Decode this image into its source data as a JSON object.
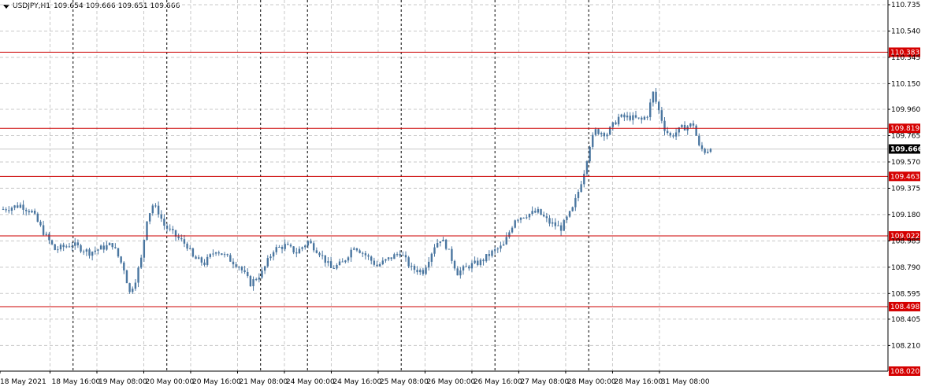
{
  "header": {
    "symbol_timeframe": "USDJPY,H1",
    "ohlc": "109.654 109.666 109.651 109.666"
  },
  "colors": {
    "candle": "#4a76a0",
    "level_line": "#cc0000",
    "level_label_bg": "#d50000",
    "current_price_line": "#c8c8c8",
    "grid": "#c8c8c8",
    "separator": "#000000"
  },
  "chart_data": {
    "type": "candlestick",
    "symbol": "USDJPY",
    "timeframe": "H1",
    "ylim": [
      108.02,
      110.77
    ],
    "y_ticks": [
      "110.735",
      "110.540",
      "110.345",
      "110.150",
      "109.960",
      "109.765",
      "109.570",
      "109.375",
      "109.180",
      "108.985",
      "108.790",
      "108.595",
      "108.405",
      "108.210"
    ],
    "x_ticks": [
      "18 May 2021",
      "18 May 16:00",
      "19 May 08:00",
      "20 May 00:00",
      "20 May 16:00",
      "21 May 08:00",
      "24 May 00:00",
      "24 May 16:00",
      "25 May 08:00",
      "26 May 00:00",
      "26 May 16:00",
      "27 May 08:00",
      "28 May 00:00",
      "28 May 16:00",
      "31 May 08:00"
    ],
    "day_separators_after_tick": [
      1,
      3,
      5,
      6,
      8,
      10,
      12,
      14
    ],
    "levels": [
      "110.383",
      "109.819",
      "109.463",
      "109.022",
      "108.498",
      "108.020"
    ],
    "current_price": "109.666",
    "close_path": [
      [
        0,
        109.22
      ],
      [
        6,
        109.25
      ],
      [
        10,
        109.2
      ],
      [
        14,
        109.05
      ],
      [
        18,
        108.92
      ],
      [
        24,
        108.96
      ],
      [
        30,
        108.9
      ],
      [
        34,
        108.93
      ],
      [
        38,
        108.96
      ],
      [
        42,
        108.78
      ],
      [
        44,
        108.6
      ],
      [
        46,
        108.7
      ],
      [
        48,
        108.85
      ],
      [
        50,
        109.15
      ],
      [
        52,
        109.25
      ],
      [
        54,
        109.2
      ],
      [
        56,
        109.1
      ],
      [
        60,
        109.02
      ],
      [
        64,
        108.95
      ],
      [
        66,
        108.86
      ],
      [
        70,
        108.82
      ],
      [
        74,
        108.92
      ],
      [
        78,
        108.86
      ],
      [
        82,
        108.8
      ],
      [
        86,
        108.67
      ],
      [
        90,
        108.75
      ],
      [
        94,
        108.92
      ],
      [
        98,
        108.95
      ],
      [
        102,
        108.9
      ],
      [
        106,
        108.98
      ],
      [
        110,
        108.9
      ],
      [
        114,
        108.78
      ],
      [
        118,
        108.82
      ],
      [
        122,
        108.95
      ],
      [
        126,
        108.88
      ],
      [
        130,
        108.8
      ],
      [
        134,
        108.85
      ],
      [
        138,
        108.9
      ],
      [
        142,
        108.78
      ],
      [
        146,
        108.76
      ],
      [
        150,
        108.95
      ],
      [
        152,
        109.0
      ],
      [
        154,
        108.95
      ],
      [
        158,
        108.75
      ],
      [
        162,
        108.8
      ],
      [
        166,
        108.83
      ],
      [
        170,
        108.9
      ],
      [
        174,
        108.95
      ],
      [
        178,
        109.15
      ],
      [
        182,
        109.18
      ],
      [
        186,
        109.2
      ],
      [
        190,
        109.12
      ],
      [
        194,
        109.08
      ],
      [
        198,
        109.22
      ],
      [
        200,
        109.35
      ],
      [
        202,
        109.5
      ],
      [
        204,
        109.7
      ],
      [
        206,
        109.8
      ],
      [
        210,
        109.78
      ],
      [
        214,
        109.9
      ],
      [
        218,
        109.9
      ],
      [
        222,
        109.88
      ],
      [
        224,
        109.92
      ],
      [
        226,
        110.08
      ],
      [
        228,
        109.95
      ],
      [
        230,
        109.82
      ],
      [
        232,
        109.76
      ],
      [
        236,
        109.82
      ],
      [
        240,
        109.85
      ],
      [
        242,
        109.68
      ],
      [
        244,
        109.65
      ],
      [
        246,
        109.666
      ]
    ]
  }
}
